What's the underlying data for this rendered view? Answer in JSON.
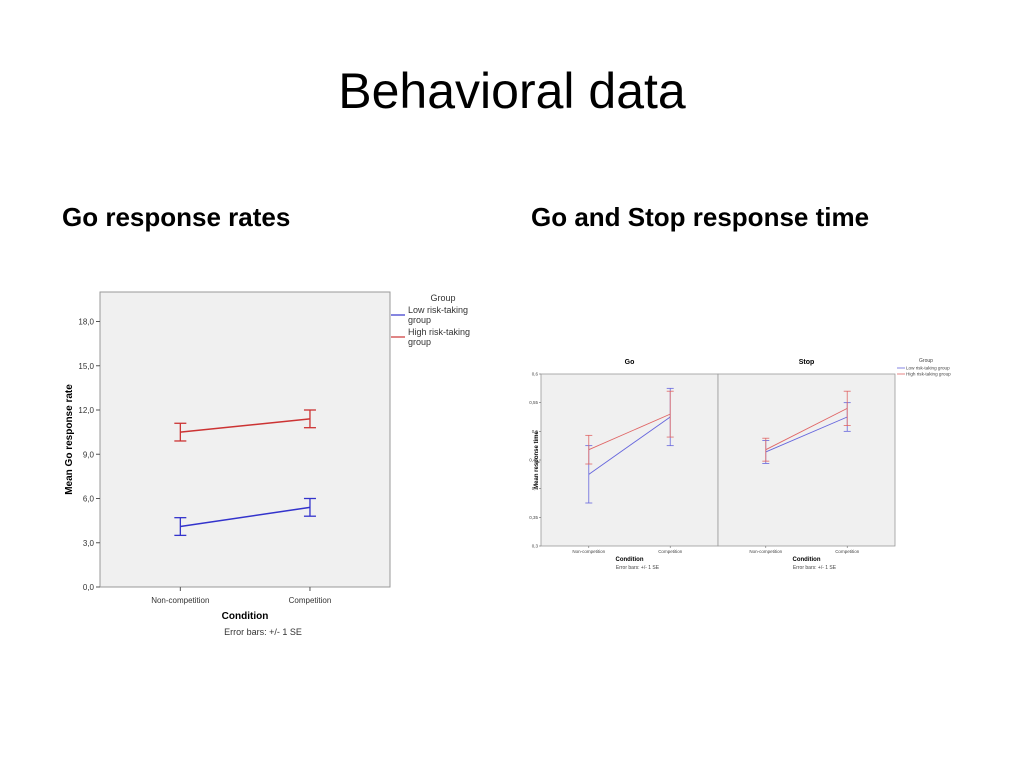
{
  "slide": {
    "title": "Behavioral data",
    "left_heading": "Go response rates",
    "right_heading": "Go and Stop response time"
  },
  "chart_data": [
    {
      "type": "line",
      "title": "",
      "xlabel": "Condition",
      "ylabel": "Mean Go response rate",
      "categories": [
        "Non-competition",
        "Competition"
      ],
      "ylim": [
        0,
        20
      ],
      "yticks": [
        "0,0",
        "3,0",
        "6,0",
        "9,0",
        "12,0",
        "15,0",
        "18,0"
      ],
      "yticks_values": [
        0,
        3,
        6,
        9,
        12,
        15,
        18
      ],
      "legend_title": "Group",
      "legend_position": "top-right",
      "note": "Error bars: +/- 1 SE",
      "series": [
        {
          "name": "Low risk-taking group",
          "color": "#3333cc",
          "values": [
            4.1,
            5.4
          ],
          "se": [
            0.6,
            0.6
          ]
        },
        {
          "name": "High risk-taking group",
          "color": "#cc3333",
          "values": [
            10.5,
            11.4
          ],
          "se": [
            0.6,
            0.6
          ]
        }
      ]
    },
    {
      "type": "line",
      "panels": [
        {
          "title": "Go",
          "categories": [
            "Non-competition",
            "Competition"
          ],
          "series": [
            {
              "name": "Low risk-taking group",
              "color": "#6666dd",
              "values": [
                0.425,
                0.525
              ],
              "se": [
                0.05,
                0.05
              ]
            },
            {
              "name": "High risk-taking group",
              "color": "#e06666",
              "values": [
                0.468,
                0.53
              ],
              "se": [
                0.025,
                0.04
              ]
            }
          ]
        },
        {
          "title": "Stop",
          "categories": [
            "Non-competition",
            "Competition"
          ],
          "series": [
            {
              "name": "Low risk-taking group",
              "color": "#6666dd",
              "values": [
                0.464,
                0.525
              ],
              "se": [
                0.02,
                0.025
              ]
            },
            {
              "name": "High risk-taking group",
              "color": "#e06666",
              "values": [
                0.468,
                0.54
              ],
              "se": [
                0.02,
                0.03
              ]
            }
          ]
        }
      ],
      "xlabel": "Condition",
      "ylabel": "Mean response time",
      "ylim": [
        0.3,
        0.6
      ],
      "yticks": [
        "0,3",
        "0,35",
        "0,4",
        "0,45",
        "0,5",
        "0,55",
        "0,6"
      ],
      "yticks_values": [
        0.3,
        0.35,
        0.4,
        0.45,
        0.5,
        0.55,
        0.6
      ],
      "legend_title": "Group",
      "legend_position": "top-right",
      "legend_entries": [
        "Low risk-taking group",
        "High risk-taking group"
      ],
      "note": "Error bars: +/- 1 SE"
    }
  ]
}
